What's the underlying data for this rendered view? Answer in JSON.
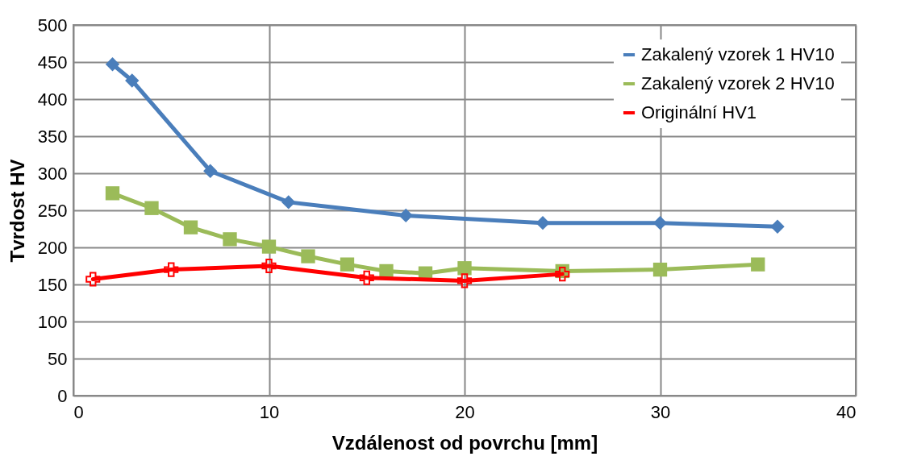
{
  "chart_data": {
    "type": "line",
    "xlabel": "Vzdálenost od povrchu [mm]",
    "ylabel": "Tvrdost HV",
    "xlim": [
      0,
      40
    ],
    "xticks": [
      0,
      10,
      20,
      30,
      40
    ],
    "ylim": [
      0,
      500
    ],
    "yticks": [
      0,
      50,
      100,
      150,
      200,
      250,
      300,
      350,
      400,
      450,
      500
    ],
    "grid": true,
    "legend": "top right",
    "line_style": "solid",
    "series": [
      {
        "name": "Zakalený vzorek 1 HV10",
        "color": "#4a7ebb",
        "marker": "diamond",
        "x": [
          2,
          3,
          7,
          11,
          17,
          24,
          30,
          36
        ],
        "values": [
          447,
          425,
          303,
          261,
          243,
          233,
          233,
          228
        ]
      },
      {
        "name": "Zakalený vzorek 2 HV10",
        "color": "#9bbb59",
        "marker": "square",
        "x": [
          2,
          4,
          6,
          8,
          10,
          12,
          14,
          16,
          18,
          20,
          25,
          30,
          35
        ],
        "values": [
          273,
          253,
          227,
          211,
          201,
          188,
          177,
          168,
          165,
          172,
          168,
          170,
          177
        ]
      },
      {
        "name": "Originální HV1",
        "color": "#ff0000",
        "marker": "cross",
        "x": [
          1,
          5,
          10,
          15,
          20,
          25
        ],
        "values": [
          157,
          170,
          175,
          159,
          155,
          164
        ]
      }
    ]
  }
}
